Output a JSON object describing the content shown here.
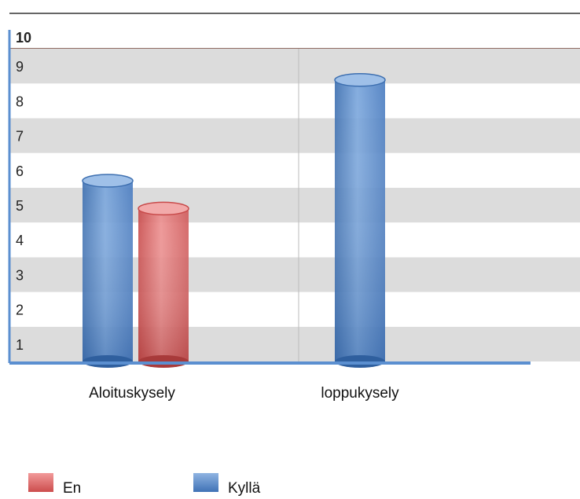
{
  "chart_data": {
    "type": "bar",
    "title": "",
    "xlabel": "",
    "ylabel": "",
    "categories": [
      "Aloituskysely",
      "loppukysely"
    ],
    "series": [
      {
        "name": "Kyllä",
        "values": [
          5.2,
          8.1
        ],
        "color": "#5b8fd0"
      },
      {
        "name": "En",
        "values": [
          4.4,
          null
        ],
        "color": "#e06a6a"
      }
    ],
    "ylim": [
      0,
      10
    ],
    "y_ticks": [
      "1",
      "2",
      "3",
      "4",
      "5",
      "6",
      "7",
      "8",
      "9",
      "10"
    ],
    "grid": "alternating-bands",
    "legend": {
      "placement": "bottom",
      "entries": [
        {
          "name": "En",
          "color": "#e06a6a"
        },
        {
          "name": "Kyllä",
          "color": "#5b8fd0"
        }
      ]
    }
  }
}
